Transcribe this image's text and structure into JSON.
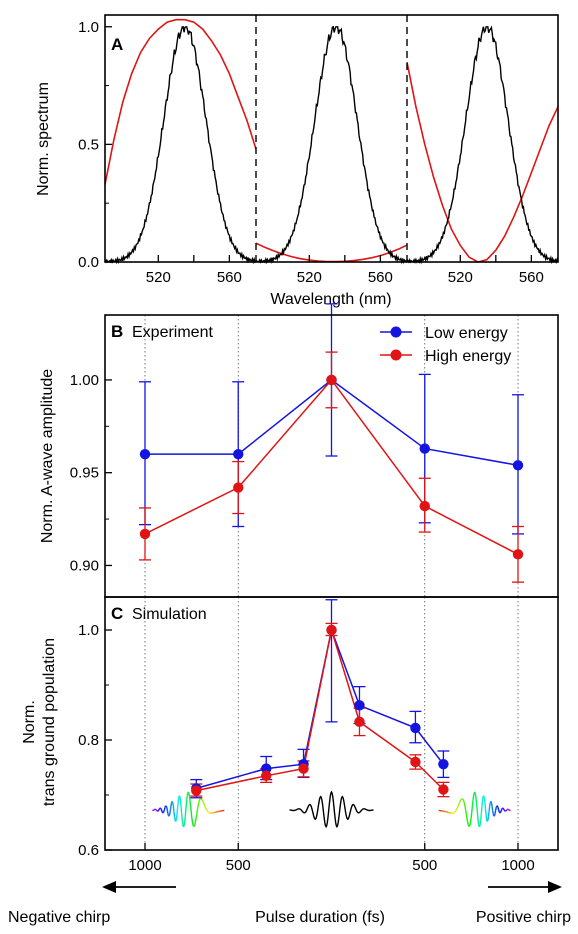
{
  "colors": {
    "low": "#1414e0",
    "high": "#e01414",
    "spectrum": "#000000"
  },
  "chart_data": [
    {
      "panel": "A",
      "type": "line",
      "xlabel": "Wavelength (nm)",
      "ylabel": "Norm. spectrum",
      "ylim": [
        0,
        1.05
      ],
      "yticks": [
        "0.0",
        "0.5",
        "1.0"
      ],
      "sub_xlim": [
        490,
        575
      ],
      "xtick_values": [
        520,
        540,
        560
      ],
      "xtick_labels": [
        "520",
        "",
        "560"
      ],
      "spectrum_fwhm_nm": 28,
      "spectrum_center_nm": 535,
      "chirp_curves": [
        {
          "sub": 0,
          "x": [
            490,
            495,
            500,
            505,
            510,
            515,
            520,
            525,
            530,
            535,
            540,
            545,
            550,
            555,
            560,
            565,
            570,
            575
          ],
          "y": [
            0.33,
            0.52,
            0.68,
            0.8,
            0.89,
            0.95,
            0.99,
            1.02,
            1.03,
            1.03,
            1.02,
            0.99,
            0.94,
            0.88,
            0.8,
            0.7,
            0.6,
            0.48
          ]
        },
        {
          "sub": 1,
          "x": [
            490,
            495,
            500,
            505,
            510,
            515,
            520,
            525,
            530,
            535,
            540,
            545,
            550,
            555,
            560,
            565,
            570,
            575
          ],
          "y": [
            0.08,
            0.062,
            0.047,
            0.034,
            0.023,
            0.014,
            0.008,
            0.004,
            0.002,
            0.002,
            0.003,
            0.006,
            0.011,
            0.018,
            0.027,
            0.039,
            0.054,
            0.072
          ]
        },
        {
          "sub": 2,
          "x": [
            490,
            495,
            500,
            505,
            510,
            515,
            520,
            525,
            530,
            535,
            540,
            545,
            550,
            555,
            560,
            565,
            570,
            575
          ],
          "y": [
            0.85,
            0.66,
            0.5,
            0.36,
            0.24,
            0.14,
            0.07,
            0.02,
            0.0,
            0.01,
            0.05,
            0.11,
            0.19,
            0.28,
            0.38,
            0.48,
            0.58,
            0.66
          ]
        }
      ],
      "annotations": [
        "A"
      ]
    },
    {
      "panel": "B",
      "type": "line",
      "title": "Experiment",
      "ylabel": "Norm. A-wave amplitude",
      "ylim": [
        0.883,
        1.035
      ],
      "yticks": [
        0.9,
        0.95,
        1.0
      ],
      "ytick_labels": [
        "0.90",
        "0.95",
        "1.00"
      ],
      "x": [
        0,
        1,
        2,
        3,
        4
      ],
      "legend_placement": "top-right",
      "series": [
        {
          "name": "Low energy",
          "color": "#1414e0",
          "values": [
            0.96,
            0.96,
            1.0,
            0.963,
            0.954
          ],
          "err_low": [
            0.922,
            0.921,
            0.959,
            0.923,
            0.917
          ],
          "err_high": [
            0.999,
            0.999,
            1.041,
            1.003,
            0.992
          ]
        },
        {
          "name": "High energy",
          "color": "#e01414",
          "values": [
            0.917,
            0.942,
            1.0,
            0.932,
            0.906
          ],
          "err_low": [
            0.903,
            0.928,
            0.985,
            0.918,
            0.891
          ],
          "err_high": [
            0.931,
            0.956,
            1.015,
            0.947,
            0.921
          ]
        }
      ],
      "annotations": [
        "B"
      ]
    },
    {
      "panel": "C",
      "type": "line",
      "title": "Simulation",
      "ylabel_lines": [
        "Norm.",
        "trans ground population"
      ],
      "xlabel": "Pulse duration (fs)",
      "ylim": [
        0.6,
        1.06
      ],
      "yticks": [
        0.6,
        0.8,
        1.0
      ],
      "ytick_labels": [
        "0.6",
        "0.8",
        "1.0"
      ],
      "x": [
        0.55,
        1.3,
        1.7,
        2.0,
        2.3,
        2.9,
        3.2
      ],
      "series": [
        {
          "name": "Low energy",
          "color": "#1414e0",
          "values": [
            0.712,
            0.748,
            0.756,
            1.0,
            0.863,
            0.822,
            0.756
          ],
          "err_low": [
            0.695,
            0.728,
            0.732,
            0.833,
            0.83,
            0.795,
            0.732
          ],
          "err_high": [
            0.728,
            0.77,
            0.783,
            1.055,
            0.897,
            0.852,
            0.78
          ]
        },
        {
          "name": "High energy",
          "color": "#e01414",
          "values": [
            0.708,
            0.735,
            0.748,
            1.0,
            0.833,
            0.76,
            0.71
          ],
          "err_low": [
            0.698,
            0.723,
            0.733,
            0.99,
            0.808,
            0.747,
            0.697
          ],
          "err_high": [
            0.72,
            0.748,
            0.762,
            1.012,
            0.858,
            0.773,
            0.723
          ]
        }
      ],
      "xtick_labels": [
        "1000",
        "500",
        "500",
        "1000"
      ],
      "xtick_values": [
        0,
        1,
        3,
        4
      ],
      "arrow_labels": {
        "left": "Negative chirp",
        "right": "Positive chirp"
      },
      "annotations": [
        "C"
      ]
    }
  ]
}
